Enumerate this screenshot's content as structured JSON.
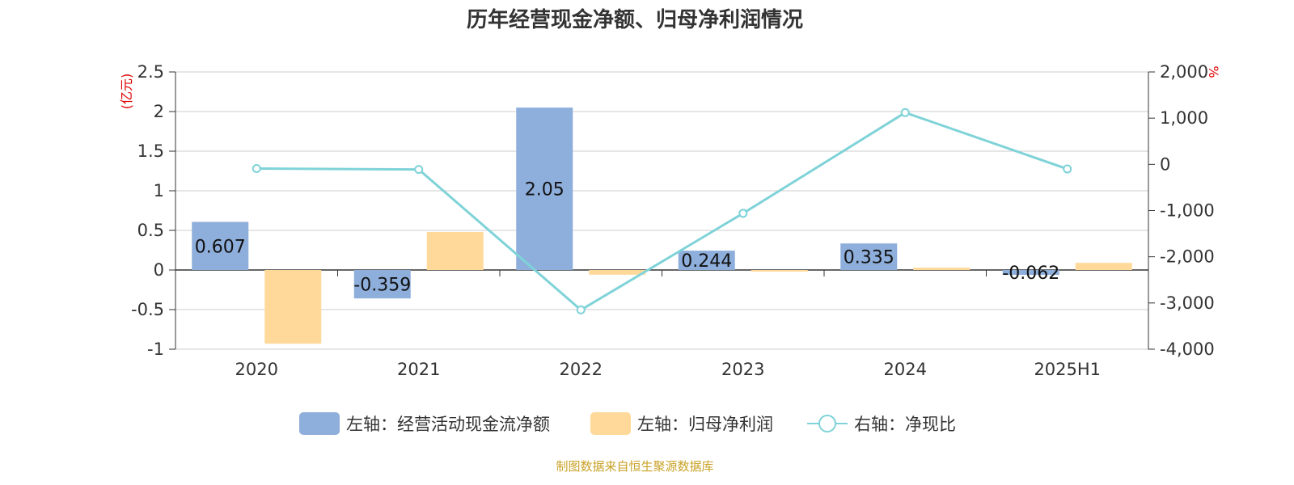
{
  "title": "历年经营现金净额、归母净利润情况",
  "source": "制图数据来自恒生聚源数据库",
  "colors": {
    "operating_cash": "#8eaedb",
    "net_profit": "#ffd99a",
    "ratio_line": "#7fd3d8",
    "unit_text": "#e00000",
    "source_text": "#c9a227"
  },
  "chart_data": {
    "type": "bar",
    "title": "历年经营现金净额、归母净利润情况",
    "categories": [
      "2020",
      "2021",
      "2022",
      "2023",
      "2024",
      "2025H1"
    ],
    "left_axis": {
      "unit": "(亿元)",
      "ylim": [
        -1,
        2.5
      ],
      "ticks": [
        2.5,
        2,
        1.5,
        1,
        0.5,
        0,
        -0.5,
        -1
      ],
      "tick_labels": [
        "2.5",
        "2",
        "1.5",
        "1",
        "0.5",
        "0",
        "-0.5",
        "-1"
      ]
    },
    "right_axis": {
      "unit": "%",
      "ylim": [
        -4000,
        2000
      ],
      "ticks": [
        2000,
        1000,
        0,
        -1000,
        -2000,
        -3000,
        -4000
      ],
      "tick_labels": [
        "2,000",
        "1,000",
        "0",
        "-1,000",
        "-2,000",
        "-3,000",
        "-4,000"
      ]
    },
    "series": [
      {
        "name": "左轴：经营活动现金流净额",
        "type": "bar",
        "axis": "left",
        "values": [
          0.607,
          -0.359,
          2.05,
          0.244,
          0.335,
          -0.062
        ],
        "labels": [
          "0.607",
          "-0.359",
          "2.05",
          "0.244",
          "0.335",
          "-0.062"
        ]
      },
      {
        "name": "左轴：归母净利润",
        "type": "bar",
        "axis": "left",
        "values": [
          -0.93,
          0.48,
          -0.06,
          -0.01,
          0.03,
          0.09
        ]
      },
      {
        "name": "右轴：净现比",
        "type": "line",
        "axis": "right",
        "values": [
          -90,
          -110,
          -3150,
          -1060,
          1120,
          -100
        ]
      }
    ],
    "grid": true,
    "legend_position": "bottom"
  }
}
